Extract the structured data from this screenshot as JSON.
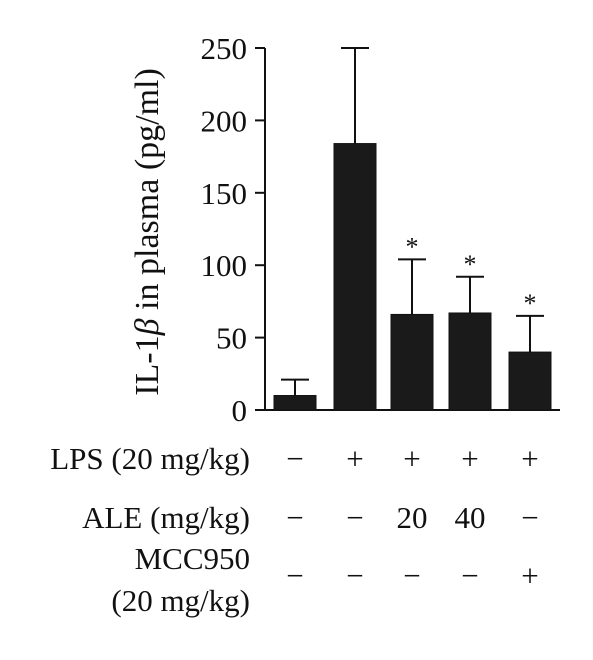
{
  "chart_data": {
    "type": "bar",
    "ylabel_prefix": "IL-1",
    "ylabel_greek": "β",
    "ylabel_suffix": " in plasma (pg/ml)",
    "ylim": [
      0,
      250
    ],
    "yticks": [
      0,
      50,
      100,
      150,
      200,
      250
    ],
    "grid": false,
    "bar_color": "#1a1a1a",
    "values": [
      10,
      184,
      66,
      67,
      40
    ],
    "errors": [
      11,
      66,
      38,
      25,
      25
    ],
    "significance": [
      "",
      "",
      "*",
      "*",
      "*"
    ],
    "treatments": [
      {
        "label": "LPS (20 mg/kg)",
        "label_lines": [
          "LPS (20 mg/kg)"
        ],
        "cells": [
          "−",
          "+",
          "+",
          "+",
          "+"
        ]
      },
      {
        "label": "ALE (mg/kg)",
        "label_lines": [
          "ALE (mg/kg)"
        ],
        "cells": [
          "−",
          "−",
          "20",
          "40",
          "−"
        ]
      },
      {
        "label": "MCC950 (20 mg/kg)",
        "label_lines": [
          "MCC950",
          "(20 mg/kg)"
        ],
        "cells": [
          "−",
          "−",
          "−",
          "−",
          "+"
        ]
      }
    ]
  }
}
